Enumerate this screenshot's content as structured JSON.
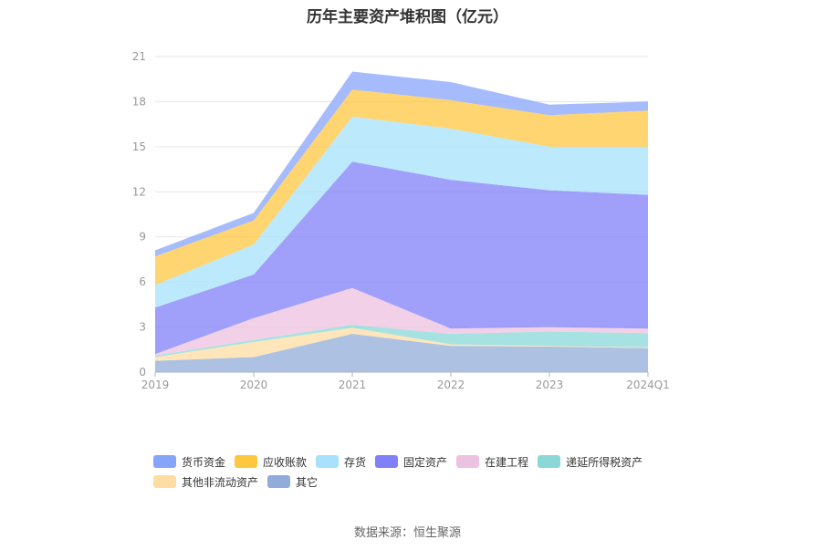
{
  "source_text": "数据来源：恒生聚源",
  "chart_data": {
    "type": "area",
    "stacked": true,
    "title": "历年主要资产堆积图（亿元）",
    "categories": [
      "2019",
      "2020",
      "2021",
      "2022",
      "2023",
      "2024Q1"
    ],
    "ylim": [
      0,
      21
    ],
    "yticks": [
      0,
      3,
      6,
      9,
      12,
      15,
      18,
      21
    ],
    "grid": true,
    "legend_position": "bottom-left",
    "series": [
      {
        "name": "其它",
        "color": "#91acd8",
        "values": [
          0.75,
          1.0,
          2.55,
          1.75,
          1.7,
          1.6
        ]
      },
      {
        "name": "其他非流动资产",
        "color": "#fedda3",
        "values": [
          0.25,
          1.0,
          0.4,
          0.1,
          0.05,
          0.05
        ]
      },
      {
        "name": "递延所得税资产",
        "color": "#8ad8d8",
        "values": [
          0.1,
          0.15,
          0.2,
          0.7,
          0.95,
          0.95
        ]
      },
      {
        "name": "在建工程",
        "color": "#edc1e0",
        "values": [
          0.1,
          1.45,
          2.45,
          0.35,
          0.3,
          0.3
        ]
      },
      {
        "name": "固定资产",
        "color": "#8080f8",
        "values": [
          3.1,
          2.9,
          8.4,
          9.9,
          9.1,
          8.9
        ]
      },
      {
        "name": "存货",
        "color": "#a7e1fb",
        "values": [
          1.5,
          2.0,
          3.0,
          3.4,
          2.9,
          3.2
        ]
      },
      {
        "name": "应收账款",
        "color": "#fec740",
        "values": [
          1.9,
          1.6,
          1.8,
          1.9,
          2.1,
          2.4
        ]
      },
      {
        "name": "货币资金",
        "color": "#87a4fb",
        "values": [
          0.4,
          0.5,
          1.2,
          1.2,
          0.7,
          0.6
        ]
      }
    ],
    "legend_order": [
      "货币资金",
      "应收账款",
      "存货",
      "固定资产",
      "在建工程",
      "递延所得税资产",
      "其他非流动资产",
      "其它"
    ]
  }
}
